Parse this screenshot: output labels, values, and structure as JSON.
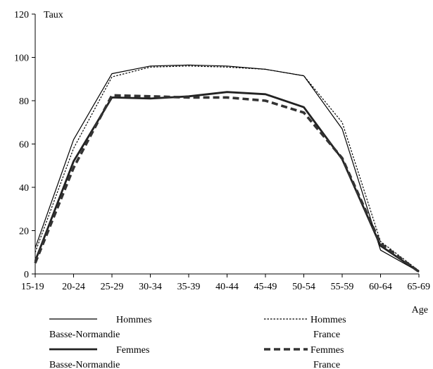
{
  "chart_data": {
    "type": "line",
    "ylabel": "Taux",
    "xlabel": "Age",
    "ylim": [
      0,
      120
    ],
    "yticks": [
      0,
      20,
      40,
      60,
      80,
      100,
      120
    ],
    "categories": [
      "15-19",
      "20-24",
      "25-29",
      "30-34",
      "35-39",
      "40-44",
      "45-49",
      "50-54",
      "55-59",
      "60-64",
      "65-69"
    ],
    "grid": false,
    "legend_position": "bottom",
    "series": [
      {
        "name": "Hommes Basse-Normandie",
        "legend_lines": [
          "Hommes",
          "Basse-Normandie"
        ],
        "style": "thin-solid",
        "values": [
          12,
          62,
          92.5,
          96,
          96.5,
          96,
          94.5,
          91.5,
          67,
          11,
          1
        ]
      },
      {
        "name": "Hommes France",
        "legend_lines": [
          "Hommes",
          "France"
        ],
        "style": "thin-dotted",
        "values": [
          10,
          58,
          91,
          95.5,
          96,
          95.5,
          94.5,
          91.5,
          70,
          15,
          1.5
        ]
      },
      {
        "name": "Femmes Basse-Normandie",
        "legend_lines": [
          "Femmes",
          "Basse-Normandie"
        ],
        "style": "thick-solid",
        "values": [
          6,
          52,
          81.5,
          81,
          82,
          84,
          83,
          77,
          53,
          13,
          1
        ]
      },
      {
        "name": "Femmes France",
        "legend_lines": [
          "Femmes",
          "France"
        ],
        "style": "thick-dashed",
        "values": [
          5,
          49,
          82.5,
          82,
          81.5,
          81.5,
          80,
          74.5,
          53.5,
          14,
          1
        ]
      }
    ]
  }
}
